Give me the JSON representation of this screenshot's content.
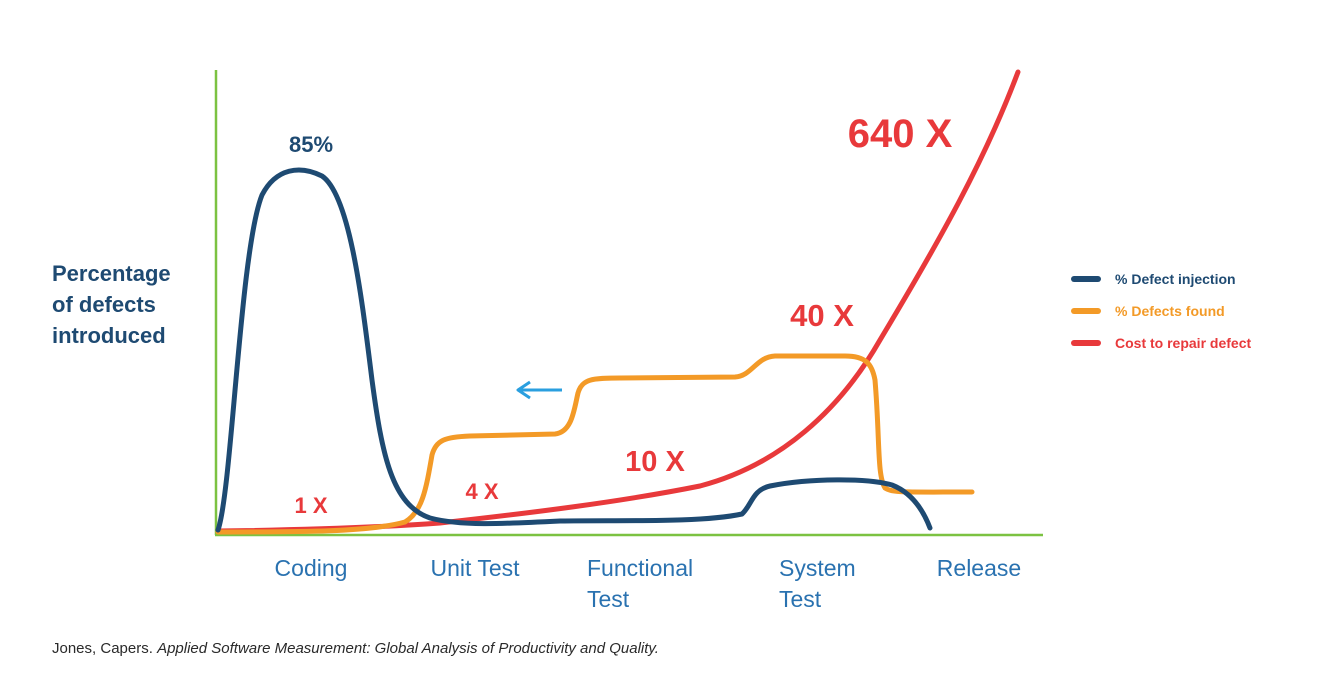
{
  "chart_data": {
    "type": "line",
    "title": "",
    "ylabel_lines": [
      "Percentage",
      "of defects",
      "introduced"
    ],
    "categories": [
      "Coding",
      "Unit Test",
      "Functional Test",
      "System Test",
      "Release"
    ],
    "category_lines": [
      [
        "Coding"
      ],
      [
        "Unit Test"
      ],
      [
        "Functional",
        "Test"
      ],
      [
        "System",
        "Test"
      ],
      [
        "Release"
      ]
    ],
    "series": [
      {
        "name": "% Defect injection",
        "color": "#1e4a72",
        "values": [
          85,
          0.5,
          0.5,
          10,
          0
        ]
      },
      {
        "name": "% Defects found",
        "color": "#f39a27",
        "values": [
          0,
          20,
          35,
          40,
          10
        ]
      },
      {
        "name": "Cost to repair defect",
        "color": "#e8393b",
        "values": [
          1,
          4,
          10,
          40,
          640
        ]
      }
    ],
    "annotations": {
      "peak": "85%",
      "cost_1x": "1 X",
      "cost_4x": "4 X",
      "cost_10x": "10 X",
      "cost_40x": "40 X",
      "cost_640x": "640 X"
    },
    "axis_color": "#7cc242",
    "arrow_color": "#2a9fdf",
    "grid": false,
    "legend_position": "right"
  },
  "citation": {
    "plain": "Jones, Capers. ",
    "italic": "Applied Software Measurement: Global Analysis of Productivity and Quality."
  }
}
